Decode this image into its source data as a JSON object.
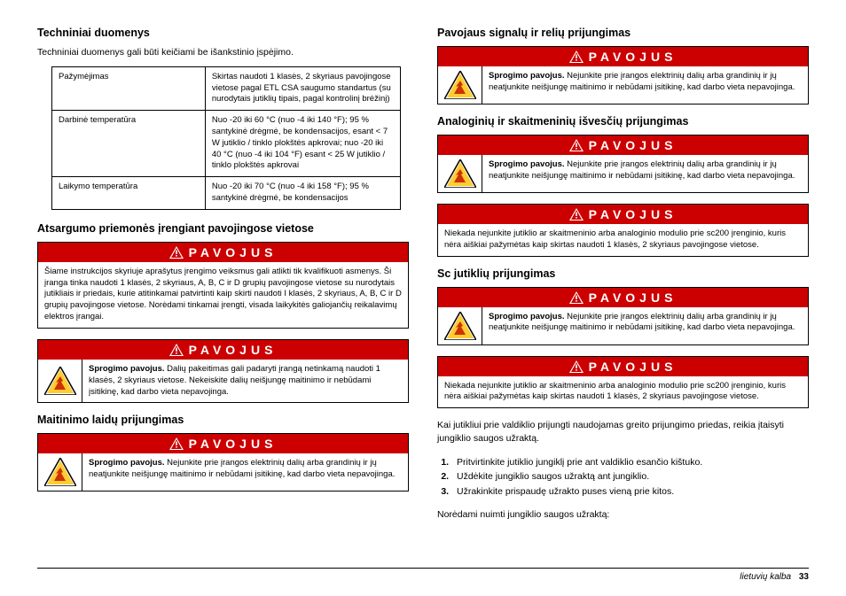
{
  "left": {
    "tech_heading": "Techniniai duomenys",
    "tech_intro": "Techniniai duomenys gali būti keičiami be išankstinio įspėjimo.",
    "spec_rows": [
      {
        "label": "Pažymėjimas",
        "value": "Skirtas naudoti 1 klasės, 2 skyriaus pavojingose vietose pagal ETL CSA saugumo standartus (su nurodytais jutiklių tipais, pagal kontrolinį brėžinį)"
      },
      {
        "label": "Darbinė temperatūra",
        "value": "Nuo -20 iki 60 °C (nuo -4 iki 140 °F); 95 % santykinė drėgmė, be kondensacijos, esant < 7 W jutiklio / tinklo plokštės apkrovai; nuo -20 iki 40 °C (nuo -4 iki 104 °F) esant < 25 W jutiklio / tinklo plokštės apkrovai"
      },
      {
        "label": "Laikymo temperatūra",
        "value": "Nuo -20 iki 70 °C (nuo -4 iki 158 °F); 95 % santykinė drėgmė, be kondensacijos"
      }
    ],
    "precautions_heading": "Atsargumo priemonės įrengiant pavojingose vietose",
    "danger_label": "PAVOJUS",
    "danger1_text": "Šiame instrukcijos skyriuje aprašytus įrengimo veiksmus gali atlikti tik kvalifikuoti asmenys. Ši įranga tinka naudoti 1 klasės, 2 skyriaus, A, B, C ir D grupių pavojingose vietose su nurodytais jutikliais ir priedais, kurie atitinkamai patvirtinti kaip skirti naudoti I klasės, 2 skyriaus, A, B, C ir D grupių pavojingose vietose. Norėdami tinkamai įrengti, visada laikykitės galiojančių reikalavimų elektros įrangai.",
    "danger2_text": "Sprogimo pavojus. Dalių pakeitimas gali padaryti įrangą netinkamą naudoti 1 klasės, 2 skyriaus vietose. Nekeiskite dalių neišjungę maitinimo ir nebūdami įsitikinę, kad darbo vieta nepavojinga.",
    "power_heading": "Maitinimo laidų prijungimas",
    "danger3_text": "Sprogimo pavojus. Nejunkite prie įrangos elektrinių dalių arba grandinių ir jų neatjunkite neišjungę maitinimo ir nebūdami įsitikinę, kad darbo vieta nepavojinga."
  },
  "right": {
    "alarm_heading": "Pavojaus signalų ir relių prijungimas",
    "danger_label": "PAVOJUS",
    "danger4_text": "Sprogimo pavojus. Nejunkite prie įrangos elektrinių dalių arba grandinių ir jų neatjunkite neišjungę maitinimo ir nebūdami įsitikinę, kad darbo vieta nepavojinga.",
    "analog_heading": "Analoginių ir skaitmeninių išvesčių prijungimas",
    "danger5_text": "Sprogimo pavojus. Nejunkite prie įrangos elektrinių dalių arba grandinių ir jų neatjunkite neišjungę maitinimo ir nebūdami įsitikinę, kad darbo vieta nepavojinga.",
    "danger6_text": "Niekada nejunkite jutiklio ar skaitmeninio arba analoginio modulio prie sc200 įrenginio, kuris nėra aiškiai pažymėtas kaip skirtas naudoti 1 klasės, 2 skyriaus pavojingose vietose.",
    "sc_heading": "Sc jutiklių prijungimas",
    "danger7_text": "Sprogimo pavojus. Nejunkite prie įrangos elektrinių dalių arba grandinių ir jų neatjunkite neišjungę maitinimo ir nebūdami įsitikinę, kad darbo vieta nepavojinga.",
    "danger8_text": "Niekada nejunkite jutiklio ar skaitmeninio arba analoginio modulio prie sc200 įrenginio, kuris nėra aiškiai pažymėtas kaip skirtas naudoti 1 klasės, 2 skyriaus pavojingose vietose.",
    "body_after": "Kai jutikliui prie valdiklio prijungti naudojamas greito prijungimo priedas, reikia įtaisyti jungiklio saugos užraktą.",
    "steps": [
      "Pritvirtinkite jutiklio jungiklį prie ant valdiklio esančio kištuko.",
      "Uždėkite jungiklio saugos užraktą ant jungiklio.",
      "Užrakinkite prispaudę užrakto puses vieną prie kitos."
    ],
    "body_final": "Norėdami nuimti jungiklio saugos užraktą:"
  },
  "footer": {
    "lang": "lietuvių kalba",
    "page": "33"
  },
  "colors": {
    "danger_bg": "#cc0000",
    "danger_fg": "#ffffff",
    "border": "#000000"
  }
}
